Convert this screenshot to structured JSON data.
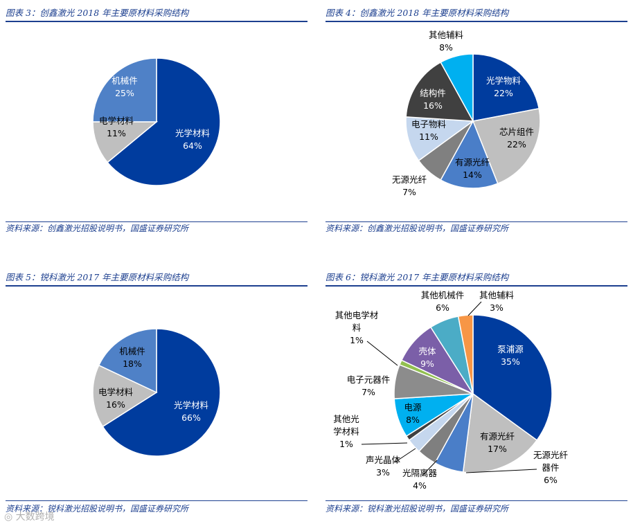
{
  "charts": [
    {
      "title": "图表 3：创鑫激光 2018 年主要原材料采购结构",
      "source": "资料来源：创鑫激光招股说明书，国盛证券研究所"
    },
    {
      "title": "图表 4：创鑫激光 2018 年主要原材料采购结构",
      "source": "资料来源：创鑫激光招股说明书，国盛证券研究所"
    },
    {
      "title": "图表 5：锐科激光 2017 年主要原材料采购结构",
      "source": "资料来源：锐科激光招股说明书，国盛证券研究所"
    },
    {
      "title": "图表 6：锐科激光 2017 年主要原材料采购结构",
      "source": "资料来源：锐科激光招股说明书，国盛证券研究所"
    }
  ],
  "chart_data": [
    {
      "type": "pie",
      "title": "图表 3：创鑫激光 2018 年主要原材料采购结构",
      "labels": [
        "光学材料",
        "电学材料",
        "机械件"
      ],
      "values": [
        64,
        11,
        25
      ],
      "value_labels": [
        "64%",
        "11%",
        "25%"
      ],
      "colors": [
        "#003C9E",
        "#BFBFBF",
        "#4F81C7"
      ]
    },
    {
      "type": "pie",
      "title": "图表 4：创鑫激光 2018 年主要原材料采购结构",
      "labels": [
        "光学物料",
        "芯片组件",
        "有源光纤",
        "无源光纤",
        "电子物料",
        "结构件",
        "其他辅料"
      ],
      "values": [
        22,
        22,
        14,
        7,
        11,
        16,
        8
      ],
      "value_labels": [
        "22%",
        "22%",
        "14%",
        "7%",
        "11%",
        "16%",
        "8%"
      ],
      "colors": [
        "#003C9E",
        "#BFBFBF",
        "#4A7EC8",
        "#808080",
        "#C5D7EE",
        "#404040",
        "#00B0F0"
      ]
    },
    {
      "type": "pie",
      "title": "图表 5：锐科激光 2017 年主要原材料采购结构",
      "labels": [
        "光学材料",
        "电学材料",
        "机械件"
      ],
      "values": [
        66,
        16,
        18
      ],
      "value_labels": [
        "66%",
        "16%",
        "18%"
      ],
      "colors": [
        "#003C9E",
        "#BFBFBF",
        "#4F81C7"
      ]
    },
    {
      "type": "pie",
      "title": "图表 6：锐科激光 2017 年主要原材料采购结构",
      "labels": [
        "泵浦源",
        "有源光纤",
        "无源光纤器件",
        "光隔离器",
        "声光晶体",
        "其他光学材料",
        "电源",
        "电子元器件",
        "其他电学材料",
        "壳体",
        "其他机械件",
        "其他辅料"
      ],
      "display_labels": [
        "泵浦源",
        "有源光纤",
        "无源光纤|器件",
        "光隔离器",
        "声光晶体",
        "其他光|学材料",
        "电源",
        "电子元器件",
        "其他电学材|料",
        "壳体",
        "其他机械件",
        "其他辅料"
      ],
      "values": [
        35,
        17,
        6,
        4,
        3,
        1,
        8,
        7,
        1,
        9,
        6,
        3
      ],
      "value_labels": [
        "35%",
        "17%",
        "6%",
        "4%",
        "3%",
        "1%",
        "8%",
        "7%",
        "1%",
        "9%",
        "6%",
        "3%"
      ],
      "colors": [
        "#003C9E",
        "#BFBFBF",
        "#4A7EC8",
        "#7F7F7F",
        "#C5D7EE",
        "#404040",
        "#00B0F0",
        "#8C8C8C",
        "#92C050",
        "#7B5FA8",
        "#4BACC6",
        "#F79646"
      ]
    }
  ],
  "watermark": "◎ 大数跨境"
}
